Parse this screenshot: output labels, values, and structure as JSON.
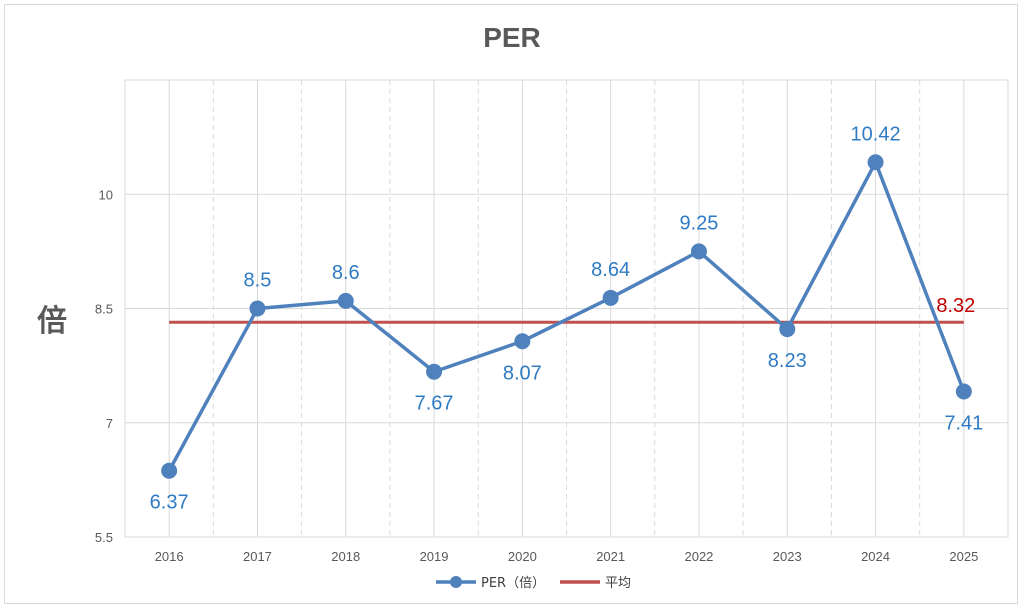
{
  "chart_data": {
    "type": "line",
    "title": "PER",
    "ylabel": "倍",
    "xlabel": "",
    "categories": [
      "2016",
      "2017",
      "2018",
      "2019",
      "2020",
      "2021",
      "2022",
      "2023",
      "2024",
      "2025"
    ],
    "ylim": [
      5.5,
      11.5
    ],
    "yticks": [
      "5.5",
      "7",
      "8.5",
      "10"
    ],
    "ytick_values": [
      5.5,
      7,
      8.5,
      10
    ],
    "grid": true,
    "legend_position": "bottom",
    "series": [
      {
        "name": "PER（倍）",
        "values": [
          6.37,
          8.5,
          8.6,
          7.67,
          8.07,
          8.64,
          9.25,
          8.23,
          10.42,
          7.41
        ],
        "labels": [
          "6.37",
          "8.5",
          "8.6",
          "7.67",
          "8.07",
          "8.64",
          "9.25",
          "8.23",
          "10.42",
          "7.41"
        ],
        "label_side": [
          "below",
          "above",
          "above",
          "below",
          "below",
          "above",
          "above",
          "below",
          "above",
          "below"
        ],
        "color": "#4f81bd",
        "label_color": "#2f7bc4"
      },
      {
        "name": "平均",
        "value": 8.32,
        "label": "8.32",
        "color": "#c0504d",
        "label_color": "#c00000"
      }
    ]
  }
}
